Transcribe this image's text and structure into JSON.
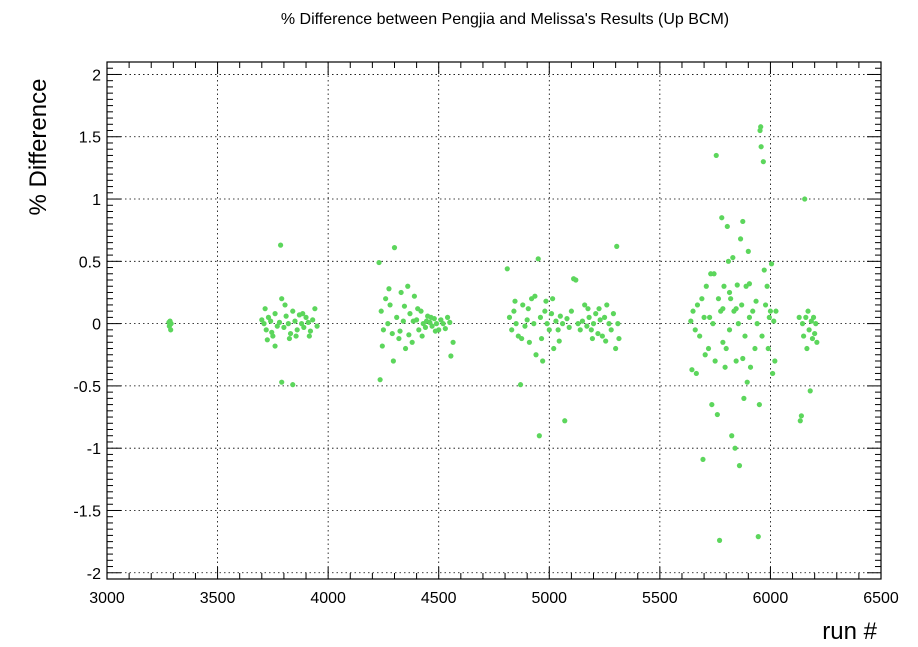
{
  "chart_data": {
    "type": "scatter",
    "title": "% Difference between Pengjia and Melissa's Results (Up BCM)",
    "xlabel": "run #",
    "ylabel": "% Difference",
    "xlim": [
      3000,
      6500
    ],
    "ylim": [
      -2.05,
      2.1
    ],
    "xticks": [
      3000,
      3500,
      4000,
      4500,
      5000,
      5500,
      6000,
      6500
    ],
    "xtick_labels": [
      "3000",
      "3500",
      "4000",
      "4500",
      "5000",
      "5500",
      "6000",
      "6500"
    ],
    "yticks": [
      -2,
      -1.5,
      -1,
      -0.5,
      0,
      0.5,
      1,
      1.5,
      2
    ],
    "ytick_labels": [
      "-2",
      "-1.5",
      "-1",
      "-0.5",
      "0",
      "0.5",
      "1",
      "1.5",
      "2"
    ],
    "grid": true,
    "marker_color": "#5cd65c",
    "series": [
      {
        "points": [
          [
            3280,
            0.01
          ],
          [
            3282,
            -0.02
          ],
          [
            3285,
            0.02
          ],
          [
            3288,
            -0.05
          ],
          [
            3290,
            0.0
          ],
          [
            3700,
            0.03
          ],
          [
            3710,
            0.0
          ],
          [
            3720,
            -0.05
          ],
          [
            3730,
            0.05
          ],
          [
            3740,
            0.02
          ],
          [
            3750,
            -0.1
          ],
          [
            3760,
            0.08
          ],
          [
            3770,
            -0.02
          ],
          [
            3780,
            0.01
          ],
          [
            3790,
            0.2
          ],
          [
            3800,
            -0.03
          ],
          [
            3810,
            0.06
          ],
          [
            3820,
            0.0
          ],
          [
            3830,
            -0.08
          ],
          [
            3840,
            0.1
          ],
          [
            3850,
            0.02
          ],
          [
            3860,
            -0.05
          ],
          [
            3870,
            0.07
          ],
          [
            3880,
            0.0
          ],
          [
            3890,
            -0.03
          ],
          [
            3900,
            0.05
          ],
          [
            3910,
            0.01
          ],
          [
            3920,
            -0.06
          ],
          [
            3930,
            0.03
          ],
          [
            3940,
            0.12
          ],
          [
            3950,
            -0.02
          ],
          [
            3715,
            0.12
          ],
          [
            3725,
            -0.13
          ],
          [
            3760,
            -0.18
          ],
          [
            3805,
            0.15
          ],
          [
            3825,
            -0.12
          ],
          [
            3855,
            -0.1
          ],
          [
            3885,
            0.08
          ],
          [
            3915,
            -0.1
          ],
          [
            3745,
            -0.07
          ],
          [
            3785,
            0.63
          ],
          [
            3790,
            -0.47
          ],
          [
            3840,
            -0.49
          ],
          [
            4230,
            0.49
          ],
          [
            4235,
            -0.45
          ],
          [
            4240,
            0.1
          ],
          [
            4250,
            -0.05
          ],
          [
            4260,
            0.2
          ],
          [
            4270,
            0.0
          ],
          [
            4280,
            0.15
          ],
          [
            4290,
            -0.08
          ],
          [
            4300,
            0.61
          ],
          [
            4310,
            0.05
          ],
          [
            4320,
            -0.12
          ],
          [
            4330,
            0.25
          ],
          [
            4340,
            0.02
          ],
          [
            4350,
            -0.2
          ],
          [
            4360,
            0.3
          ],
          [
            4370,
            0.08
          ],
          [
            4380,
            -0.15
          ],
          [
            4390,
            0.22
          ],
          [
            4400,
            0.03
          ],
          [
            4410,
            -0.05
          ],
          [
            4420,
            0.1
          ],
          [
            4430,
            0.0
          ],
          [
            4440,
            -0.03
          ],
          [
            4450,
            0.06
          ],
          [
            4460,
            0.01
          ],
          [
            4470,
            -0.02
          ],
          [
            4480,
            0.04
          ],
          [
            4490,
            0.0
          ],
          [
            4500,
            -0.05
          ],
          [
            4510,
            0.03
          ],
          [
            4520,
            0.0
          ],
          [
            4530,
            -0.04
          ],
          [
            4540,
            0.05
          ],
          [
            4550,
            0.01
          ],
          [
            4555,
            -0.26
          ],
          [
            4565,
            -0.15
          ],
          [
            4245,
            -0.18
          ],
          [
            4275,
            0.28
          ],
          [
            4295,
            -0.3
          ],
          [
            4325,
            -0.06
          ],
          [
            4345,
            0.14
          ],
          [
            4365,
            -0.09
          ],
          [
            4385,
            0.02
          ],
          [
            4405,
            0.12
          ],
          [
            4425,
            -0.1
          ],
          [
            4445,
            0.02
          ],
          [
            4465,
            0.05
          ],
          [
            4485,
            -0.06
          ],
          [
            4810,
            0.44
          ],
          [
            4820,
            0.05
          ],
          [
            4830,
            -0.05
          ],
          [
            4840,
            0.1
          ],
          [
            4850,
            0.0
          ],
          [
            4860,
            -0.1
          ],
          [
            4870,
            -0.49
          ],
          [
            4880,
            0.15
          ],
          [
            4890,
            -0.02
          ],
          [
            4900,
            0.03
          ],
          [
            4910,
            -0.15
          ],
          [
            4920,
            0.2
          ],
          [
            4930,
            0.0
          ],
          [
            4940,
            -0.25
          ],
          [
            4950,
            0.52
          ],
          [
            4955,
            -0.9
          ],
          [
            4960,
            0.05
          ],
          [
            4970,
            -0.3
          ],
          [
            4980,
            0.1
          ],
          [
            4990,
            0.0
          ],
          [
            5000,
            -0.05
          ],
          [
            5010,
            0.08
          ],
          [
            5020,
            -0.2
          ],
          [
            5030,
            0.02
          ],
          [
            5040,
            -0.05
          ],
          [
            5050,
            0.06
          ],
          [
            5060,
            0.0
          ],
          [
            5070,
            -0.78
          ],
          [
            5080,
            0.04
          ],
          [
            5090,
            -0.03
          ],
          [
            5100,
            0.1
          ],
          [
            5110,
            0.36
          ],
          [
            5120,
            0.35
          ],
          [
            5130,
            0.0
          ],
          [
            5140,
            -0.05
          ],
          [
            5150,
            0.02
          ],
          [
            5160,
            0.15
          ],
          [
            5170,
            -0.02
          ],
          [
            5180,
            0.05
          ],
          [
            5190,
            -0.05
          ],
          [
            5200,
            0.0
          ],
          [
            5210,
            0.08
          ],
          [
            5220,
            -0.08
          ],
          [
            5230,
            0.03
          ],
          [
            5240,
            -0.1
          ],
          [
            5250,
            0.05
          ],
          [
            5260,
            0.15
          ],
          [
            5270,
            0.0
          ],
          [
            5280,
            -0.05
          ],
          [
            5290,
            0.08
          ],
          [
            5300,
            -0.2
          ],
          [
            5305,
            0.62
          ],
          [
            5310,
            0.0
          ],
          [
            5315,
            -0.12
          ],
          [
            4845,
            0.18
          ],
          [
            4875,
            -0.12
          ],
          [
            4905,
            0.12
          ],
          [
            4935,
            0.22
          ],
          [
            4965,
            -0.12
          ],
          [
            4985,
            0.18
          ],
          [
            5015,
            0.2
          ],
          [
            5045,
            -0.14
          ],
          [
            5175,
            0.12
          ],
          [
            5195,
            -0.12
          ],
          [
            5225,
            0.12
          ],
          [
            5255,
            -0.14
          ],
          [
            5640,
            0.02
          ],
          [
            5645,
            -0.37
          ],
          [
            5650,
            0.1
          ],
          [
            5660,
            -0.05
          ],
          [
            5665,
            -0.4
          ],
          [
            5670,
            0.15
          ],
          [
            5680,
            -0.1
          ],
          [
            5690,
            0.2
          ],
          [
            5695,
            -1.09
          ],
          [
            5700,
            0.05
          ],
          [
            5710,
            0.3
          ],
          [
            5720,
            -0.2
          ],
          [
            5730,
            0.4
          ],
          [
            5735,
            -0.65
          ],
          [
            5740,
            0.0
          ],
          [
            5745,
            0.4
          ],
          [
            5750,
            -0.3
          ],
          [
            5755,
            1.35
          ],
          [
            5760,
            -0.73
          ],
          [
            5765,
            0.2
          ],
          [
            5770,
            -1.74
          ],
          [
            5775,
            0.1
          ],
          [
            5780,
            0.85
          ],
          [
            5785,
            -0.15
          ],
          [
            5790,
            0.3
          ],
          [
            5800,
            -0.2
          ],
          [
            5805,
            0.78
          ],
          [
            5810,
            0.5
          ],
          [
            5815,
            -0.05
          ],
          [
            5820,
            0.2
          ],
          [
            5825,
            -0.9
          ],
          [
            5830,
            0.53
          ],
          [
            5835,
            0.1
          ],
          [
            5840,
            -1.0
          ],
          [
            5845,
            -0.3
          ],
          [
            5850,
            0.31
          ],
          [
            5855,
            0.0
          ],
          [
            5860,
            -1.14
          ],
          [
            5865,
            0.68
          ],
          [
            5870,
            0.15
          ],
          [
            5875,
            0.82
          ],
          [
            5880,
            -0.6
          ],
          [
            5885,
            -0.1
          ],
          [
            5890,
            0.3
          ],
          [
            5895,
            -0.47
          ],
          [
            5900,
            0.58
          ],
          [
            5905,
            0.05
          ],
          [
            5910,
            -0.35
          ],
          [
            5920,
            0.1
          ],
          [
            5930,
            -0.2
          ],
          [
            5940,
            0.0
          ],
          [
            5945,
            -1.71
          ],
          [
            5950,
            -0.65
          ],
          [
            5953,
            1.55
          ],
          [
            5956,
            1.58
          ],
          [
            5958,
            1.42
          ],
          [
            5962,
            -0.1
          ],
          [
            5968,
            1.3
          ],
          [
            5972,
            0.43
          ],
          [
            5978,
            0.15
          ],
          [
            5985,
            0.3
          ],
          [
            5990,
            -0.2
          ],
          [
            5995,
            0.05
          ],
          [
            6000,
            0.1
          ],
          [
            6005,
            0.48
          ],
          [
            6010,
            -0.4
          ],
          [
            6015,
            0.02
          ],
          [
            6020,
            -0.3
          ],
          [
            6025,
            0.1
          ],
          [
            5705,
            -0.25
          ],
          [
            5725,
            0.05
          ],
          [
            5785,
            0.12
          ],
          [
            5795,
            -0.35
          ],
          [
            5815,
            0.25
          ],
          [
            5845,
            0.12
          ],
          [
            5875,
            -0.28
          ],
          [
            5905,
            0.32
          ],
          [
            5935,
            0.18
          ],
          [
            6130,
            0.05
          ],
          [
            6135,
            -0.78
          ],
          [
            6140,
            -0.74
          ],
          [
            6145,
            0.0
          ],
          [
            6150,
            -0.1
          ],
          [
            6155,
            1.0
          ],
          [
            6160,
            0.05
          ],
          [
            6165,
            -0.2
          ],
          [
            6170,
            0.1
          ],
          [
            6175,
            -0.05
          ],
          [
            6180,
            -0.54
          ],
          [
            6185,
            0.02
          ],
          [
            6190,
            -0.12
          ],
          [
            6195,
            0.05
          ],
          [
            6200,
            -0.08
          ],
          [
            6205,
            0.0
          ],
          [
            6210,
            -0.15
          ]
        ]
      }
    ]
  }
}
